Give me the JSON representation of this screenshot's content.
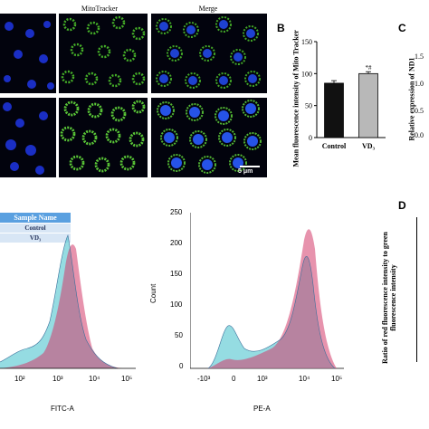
{
  "panel_a": {
    "headers": {
      "mitotracker": "MitoTracker",
      "merge": "Merge"
    },
    "scale_bar": "5 μm"
  },
  "panel_b": {
    "letter": "B",
    "annotation": "*#",
    "chart_data": {
      "type": "bar",
      "categories": [
        "Control",
        "VD3"
      ],
      "category_labels": [
        "Control",
        "VD₃"
      ],
      "values": [
        85,
        100
      ],
      "errors": [
        4,
        3
      ],
      "ylabel": "Mean fluorescence intensity of Mito Tracker",
      "ylim": [
        0,
        150
      ],
      "yticks": [
        "0",
        "50",
        "100",
        "150"
      ],
      "colors": [
        "#111111",
        "#b8b8b8"
      ]
    }
  },
  "panel_c": {
    "letter": "C",
    "ylabel": "Relative expression of ND1",
    "yticks": [
      "0.0",
      "0.5",
      "1.0",
      "1.5"
    ]
  },
  "panel_d": {
    "letter": "D",
    "ylabel": "Ratio of red fluorescence intensity to green fluorescence intensity"
  },
  "flow_left": {
    "legend": {
      "header": "Sample Name",
      "items": [
        "Control",
        "VD₃"
      ]
    },
    "xlabel": "FITC-A",
    "xticks": [
      "10²",
      "10³",
      "10⁴",
      "10⁵"
    ]
  },
  "flow_right": {
    "ylabel": "Count",
    "xlabel": "PE-A",
    "yticks": [
      "0",
      "50",
      "100",
      "150",
      "200",
      "250"
    ],
    "xticks": [
      "-10³",
      "0",
      "10³",
      "10⁴",
      "10⁵"
    ]
  },
  "colors": {
    "control": "#d33a6a",
    "vd3": "#4fc4cf",
    "merge_blue": "#2a5cff",
    "mito_green": "#5fd23a"
  }
}
